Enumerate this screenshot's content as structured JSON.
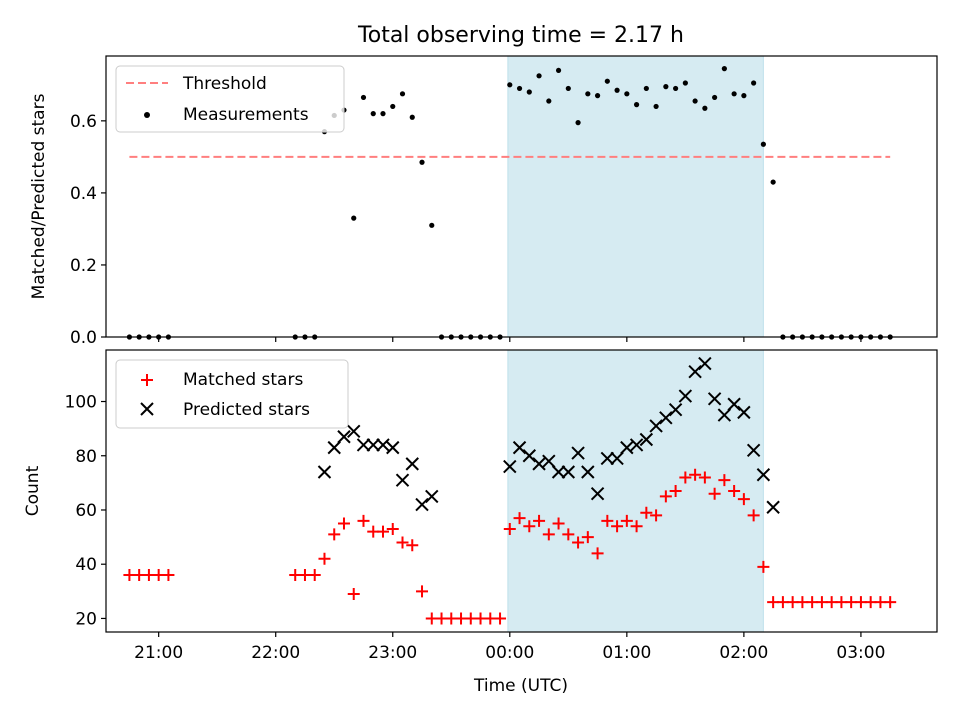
{
  "chart_data": {
    "title": "Total observing time = 2.17 h",
    "xlabel": "Time (UTC)",
    "x_unit": "hours UTC",
    "xlim": [
      "20:33",
      "03:39"
    ],
    "xticks": [
      {
        "t": "21:00",
        "label": "21:00"
      },
      {
        "t": "22:00",
        "label": "22:00"
      },
      {
        "t": "23:00",
        "label": "23:00"
      },
      {
        "t": "00:00",
        "label": "00:00"
      },
      {
        "t": "01:00",
        "label": "01:00"
      },
      {
        "t": "02:00",
        "label": "02:00"
      },
      {
        "t": "03:00",
        "label": "03:00"
      }
    ],
    "observing_window": {
      "start": "23:59",
      "end": "02:10",
      "color": "#add8e6"
    },
    "panels": [
      {
        "type": "scatter",
        "ylabel": "Matched/Predicted stars",
        "ylim": [
          0,
          0.78
        ],
        "yticks": [
          0.0,
          0.2,
          0.4,
          0.6
        ],
        "ytick_labels": [
          "0.0",
          "0.2",
          "0.4",
          "0.6"
        ],
        "legend_position": "top-left",
        "threshold": {
          "name": "Threshold",
          "value": 0.5,
          "x_start": "20:45",
          "x_end": "03:15",
          "color": "#ff7f7f"
        },
        "series": [
          {
            "name": "Measurements",
            "marker": "dot",
            "color": "#000000",
            "points": [
              [
                "20:45",
                0
              ],
              [
                "20:50",
                0
              ],
              [
                "20:55",
                0
              ],
              [
                "21:00",
                0
              ],
              [
                "21:05",
                0
              ],
              [
                "22:10",
                0
              ],
              [
                "22:15",
                0
              ],
              [
                "22:20",
                0
              ],
              [
                "22:25",
                0.57
              ],
              [
                "22:30",
                0.615
              ],
              [
                "22:35",
                0.63
              ],
              [
                "22:40",
                0.33
              ],
              [
                "22:45",
                0.665
              ],
              [
                "22:50",
                0.62
              ],
              [
                "22:55",
                0.62
              ],
              [
                "23:00",
                0.64
              ],
              [
                "23:05",
                0.675
              ],
              [
                "23:10",
                0.61
              ],
              [
                "23:15",
                0.485
              ],
              [
                "23:20",
                0.31
              ],
              [
                "23:25",
                0
              ],
              [
                "23:30",
                0
              ],
              [
                "23:35",
                0
              ],
              [
                "23:40",
                0
              ],
              [
                "23:45",
                0
              ],
              [
                "23:50",
                0
              ],
              [
                "23:55",
                0
              ],
              [
                "00:00",
                0.7
              ],
              [
                "00:05",
                0.69
              ],
              [
                "00:10",
                0.68
              ],
              [
                "00:15",
                0.725
              ],
              [
                "00:20",
                0.655
              ],
              [
                "00:25",
                0.74
              ],
              [
                "00:30",
                0.69
              ],
              [
                "00:35",
                0.595
              ],
              [
                "00:40",
                0.675
              ],
              [
                "00:45",
                0.67
              ],
              [
                "00:50",
                0.71
              ],
              [
                "00:55",
                0.685
              ],
              [
                "01:00",
                0.675
              ],
              [
                "01:05",
                0.645
              ],
              [
                "01:10",
                0.69
              ],
              [
                "01:15",
                0.64
              ],
              [
                "01:20",
                0.695
              ],
              [
                "01:25",
                0.69
              ],
              [
                "01:30",
                0.705
              ],
              [
                "01:35",
                0.655
              ],
              [
                "01:40",
                0.635
              ],
              [
                "01:45",
                0.665
              ],
              [
                "01:50",
                0.745
              ],
              [
                "01:55",
                0.675
              ],
              [
                "02:00",
                0.67
              ],
              [
                "02:05",
                0.705
              ],
              [
                "02:10",
                0.535
              ],
              [
                "02:15",
                0.43
              ],
              [
                "02:20",
                0
              ],
              [
                "02:25",
                0
              ],
              [
                "02:30",
                0
              ],
              [
                "02:35",
                0
              ],
              [
                "02:40",
                0
              ],
              [
                "02:45",
                0
              ],
              [
                "02:50",
                0
              ],
              [
                "02:55",
                0
              ],
              [
                "03:00",
                0
              ],
              [
                "03:05",
                0
              ],
              [
                "03:10",
                0
              ],
              [
                "03:15",
                0
              ]
            ]
          }
        ]
      },
      {
        "type": "scatter",
        "ylabel": "Count",
        "ylim": [
          15,
          119
        ],
        "yticks": [
          20,
          40,
          60,
          80,
          100
        ],
        "ytick_labels": [
          "20",
          "40",
          "60",
          "80",
          "100"
        ],
        "legend_position": "top-left",
        "series": [
          {
            "name": "Matched stars",
            "marker": "plus",
            "color": "#ff0000",
            "points": [
              [
                "20:45",
                36
              ],
              [
                "20:50",
                36
              ],
              [
                "20:55",
                36
              ],
              [
                "21:00",
                36
              ],
              [
                "21:05",
                36
              ],
              [
                "22:10",
                36
              ],
              [
                "22:15",
                36
              ],
              [
                "22:20",
                36
              ],
              [
                "22:25",
                42
              ],
              [
                "22:30",
                51
              ],
              [
                "22:35",
                55
              ],
              [
                "22:40",
                29
              ],
              [
                "22:45",
                56
              ],
              [
                "22:50",
                52
              ],
              [
                "22:55",
                52
              ],
              [
                "23:00",
                53
              ],
              [
                "23:05",
                48
              ],
              [
                "23:10",
                47
              ],
              [
                "23:15",
                30
              ],
              [
                "23:20",
                20
              ],
              [
                "23:25",
                20
              ],
              [
                "23:30",
                20
              ],
              [
                "23:35",
                20
              ],
              [
                "23:40",
                20
              ],
              [
                "23:45",
                20
              ],
              [
                "23:50",
                20
              ],
              [
                "23:55",
                20
              ],
              [
                "00:00",
                53
              ],
              [
                "00:05",
                57
              ],
              [
                "00:10",
                54
              ],
              [
                "00:15",
                56
              ],
              [
                "00:20",
                51
              ],
              [
                "00:25",
                55
              ],
              [
                "00:30",
                51
              ],
              [
                "00:35",
                48
              ],
              [
                "00:40",
                50
              ],
              [
                "00:45",
                44
              ],
              [
                "00:50",
                56
              ],
              [
                "00:55",
                54
              ],
              [
                "01:00",
                56
              ],
              [
                "01:05",
                54
              ],
              [
                "01:10",
                59
              ],
              [
                "01:15",
                58
              ],
              [
                "01:20",
                65
              ],
              [
                "01:25",
                67
              ],
              [
                "01:30",
                72
              ],
              [
                "01:35",
                73
              ],
              [
                "01:40",
                72
              ],
              [
                "01:45",
                66
              ],
              [
                "01:50",
                71
              ],
              [
                "01:55",
                67
              ],
              [
                "02:00",
                64
              ],
              [
                "02:05",
                58
              ],
              [
                "02:10",
                39
              ],
              [
                "02:15",
                26
              ],
              [
                "02:20",
                26
              ],
              [
                "02:25",
                26
              ],
              [
                "02:30",
                26
              ],
              [
                "02:35",
                26
              ],
              [
                "02:40",
                26
              ],
              [
                "02:45",
                26
              ],
              [
                "02:50",
                26
              ],
              [
                "02:55",
                26
              ],
              [
                "03:00",
                26
              ],
              [
                "03:05",
                26
              ],
              [
                "03:10",
                26
              ],
              [
                "03:15",
                26
              ]
            ]
          },
          {
            "name": "Predicted stars",
            "marker": "x",
            "color": "#000000",
            "points": [
              [
                "22:25",
                74
              ],
              [
                "22:30",
                83
              ],
              [
                "22:35",
                87
              ],
              [
                "22:40",
                89
              ],
              [
                "22:45",
                84
              ],
              [
                "22:50",
                84
              ],
              [
                "22:55",
                84
              ],
              [
                "23:00",
                83
              ],
              [
                "23:05",
                71
              ],
              [
                "23:10",
                77
              ],
              [
                "23:15",
                62
              ],
              [
                "23:20",
                65
              ],
              [
                "00:00",
                76
              ],
              [
                "00:05",
                83
              ],
              [
                "00:10",
                80
              ],
              [
                "00:15",
                77
              ],
              [
                "00:20",
                78
              ],
              [
                "00:25",
                74
              ],
              [
                "00:30",
                74
              ],
              [
                "00:35",
                81
              ],
              [
                "00:40",
                74
              ],
              [
                "00:45",
                66
              ],
              [
                "00:50",
                79
              ],
              [
                "00:55",
                79
              ],
              [
                "01:00",
                83
              ],
              [
                "01:05",
                84
              ],
              [
                "01:10",
                86
              ],
              [
                "01:15",
                91
              ],
              [
                "01:20",
                94
              ],
              [
                "01:25",
                97
              ],
              [
                "01:30",
                102
              ],
              [
                "01:35",
                111
              ],
              [
                "01:40",
                114
              ],
              [
                "01:45",
                101
              ],
              [
                "01:50",
                95
              ],
              [
                "01:55",
                99
              ],
              [
                "02:00",
                96
              ],
              [
                "02:05",
                82
              ],
              [
                "02:10",
                73
              ],
              [
                "02:15",
                61
              ]
            ]
          }
        ]
      }
    ]
  }
}
